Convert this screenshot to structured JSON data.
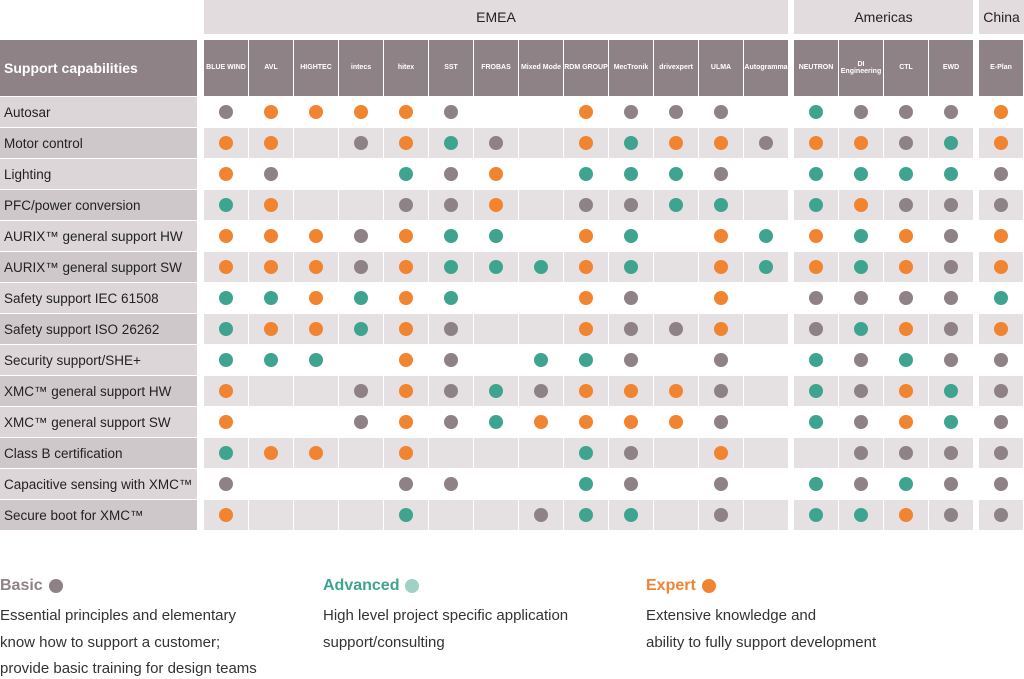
{
  "regions": {
    "emea": "EMEA",
    "americas": "Americas",
    "china": "China"
  },
  "title": "Support capabilities",
  "companies": [
    {
      "name": "BLUE WIND",
      "region": "emea"
    },
    {
      "name": "AVL",
      "region": "emea"
    },
    {
      "name": "HIGHTEC",
      "region": "emea"
    },
    {
      "name": "intecs",
      "region": "emea"
    },
    {
      "name": "hitex",
      "region": "emea"
    },
    {
      "name": "SST",
      "region": "emea"
    },
    {
      "name": "FROBAS",
      "region": "emea"
    },
    {
      "name": "Mixed Mode",
      "region": "emea"
    },
    {
      "name": "RDM GROUP",
      "region": "emea"
    },
    {
      "name": "MecTronik",
      "region": "emea"
    },
    {
      "name": "drivexpert",
      "region": "emea"
    },
    {
      "name": "ULMA",
      "region": "emea"
    },
    {
      "name": "Autogramma",
      "region": "emea"
    },
    {
      "name": "NEUTRON",
      "region": "americas"
    },
    {
      "name": "DI Engineering",
      "region": "americas"
    },
    {
      "name": "CTL",
      "region": "americas"
    },
    {
      "name": "EWD",
      "region": "americas"
    },
    {
      "name": "E-Plan",
      "region": "china"
    }
  ],
  "rows": [
    {
      "label": "Autosar",
      "cells": [
        "b",
        "e",
        "e",
        "e",
        "e",
        "b",
        "",
        "",
        "e",
        "b",
        "b",
        "b",
        "",
        "a",
        "b",
        "b",
        "b",
        "e"
      ]
    },
    {
      "label": "Motor control",
      "cells": [
        "e",
        "e",
        "",
        "b",
        "e",
        "a",
        "b",
        "",
        "e",
        "a",
        "e",
        "e",
        "b",
        "e",
        "e",
        "b",
        "a",
        "e"
      ]
    },
    {
      "label": "Lighting",
      "cells": [
        "e",
        "b",
        "",
        "",
        "a",
        "b",
        "e",
        "",
        "a",
        "a",
        "a",
        "b",
        "",
        "a",
        "a",
        "a",
        "a",
        "b"
      ]
    },
    {
      "label": "PFC/power conversion",
      "cells": [
        "a",
        "e",
        "",
        "",
        "b",
        "b",
        "e",
        "",
        "b",
        "b",
        "a",
        "a",
        "",
        "a",
        "e",
        "b",
        "b",
        "b"
      ]
    },
    {
      "label": "AURIX™ general support HW",
      "cells": [
        "e",
        "e",
        "e",
        "b",
        "e",
        "a",
        "a",
        "",
        "e",
        "a",
        "",
        "e",
        "a",
        "e",
        "a",
        "e",
        "b",
        "e"
      ]
    },
    {
      "label": "AURIX™ general support SW",
      "cells": [
        "e",
        "e",
        "e",
        "b",
        "e",
        "a",
        "a",
        "a",
        "e",
        "a",
        "",
        "e",
        "a",
        "e",
        "a",
        "e",
        "b",
        "e"
      ]
    },
    {
      "label": "Safety support IEC 61508",
      "cells": [
        "a",
        "a",
        "e",
        "a",
        "e",
        "a",
        "",
        "",
        "e",
        "b",
        "",
        "e",
        "",
        "b",
        "b",
        "b",
        "b",
        "a"
      ]
    },
    {
      "label": "Safety support ISO 26262",
      "cells": [
        "a",
        "e",
        "e",
        "a",
        "e",
        "b",
        "",
        "",
        "e",
        "b",
        "b",
        "e",
        "",
        "b",
        "a",
        "e",
        "b",
        "e"
      ]
    },
    {
      "label": "Security support/SHE+",
      "cells": [
        "a",
        "a",
        "a",
        "",
        "e",
        "b",
        "",
        "a",
        "a",
        "b",
        "",
        "b",
        "",
        "a",
        "b",
        "a",
        "b",
        "b"
      ]
    },
    {
      "label": "XMC™ general support HW",
      "cells": [
        "e",
        "",
        "",
        "b",
        "e",
        "b",
        "a",
        "b",
        "e",
        "e",
        "e",
        "b",
        "",
        "a",
        "b",
        "e",
        "a",
        "b"
      ]
    },
    {
      "label": "XMC™ general support SW",
      "cells": [
        "e",
        "",
        "",
        "b",
        "e",
        "b",
        "a",
        "e",
        "e",
        "e",
        "e",
        "b",
        "",
        "a",
        "b",
        "e",
        "a",
        "b"
      ]
    },
    {
      "label": "Class B certification",
      "cells": [
        "a",
        "e",
        "e",
        "",
        "e",
        "",
        "",
        "",
        "a",
        "b",
        "",
        "e",
        "",
        "",
        "b",
        "b",
        "b",
        "b"
      ]
    },
    {
      "label": "Capacitive sensing with XMC™",
      "cells": [
        "b",
        "",
        "",
        "",
        "b",
        "b",
        "",
        "",
        "a",
        "b",
        "",
        "b",
        "",
        "a",
        "b",
        "a",
        "b",
        "b"
      ]
    },
    {
      "label": "Secure boot for XMC™",
      "cells": [
        "e",
        "",
        "",
        "",
        "a",
        "",
        "",
        "b",
        "a",
        "a",
        "",
        "b",
        "",
        "a",
        "a",
        "e",
        "b",
        "b"
      ]
    }
  ],
  "legend": {
    "basic": {
      "title": "Basic",
      "lines": [
        "Essential principles and elementary",
        "know how to support a customer;",
        "provide basic training for design teams"
      ],
      "color": "#8e8286"
    },
    "advanced": {
      "title": "Advanced",
      "lines": [
        "High level project specific application",
        "support/consulting"
      ],
      "color": "#3fa48f"
    },
    "expert": {
      "title": "Expert",
      "lines": [
        "Extensive knowledge and",
        "ability to fully support development"
      ],
      "color": "#f08430"
    }
  },
  "colors": {
    "basic": "#8e8286",
    "advanced": "#3fa48f",
    "expert": "#f08430",
    "header_bg": "#8e8286",
    "region_bg": "#e3dcdf",
    "row_alt": "#e5e0e2"
  }
}
